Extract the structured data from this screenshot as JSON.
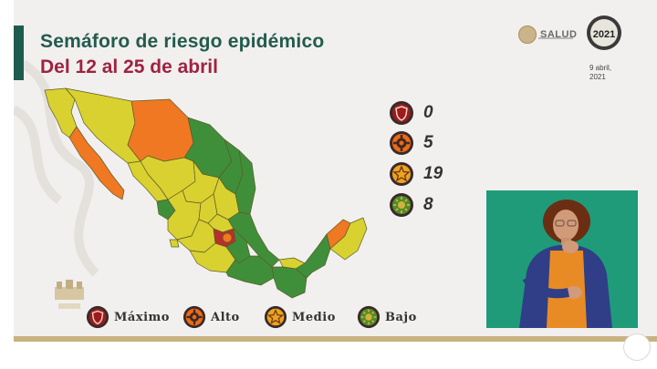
{
  "title": {
    "line1": "Semáforo de riesgo epidémico",
    "line2": "Del 12 al 25 de abril"
  },
  "header": {
    "agency": "SALUD",
    "year_badge": "2021",
    "date_line1": "9 abril,",
    "date_line2": "2021"
  },
  "counts": [
    {
      "level": "maximo",
      "value": "0",
      "color": "#9b1c1c",
      "icon": "shield-icon"
    },
    {
      "level": "alto",
      "value": "5",
      "color": "#ef6a13",
      "icon": "gear-icon"
    },
    {
      "level": "medio",
      "value": "19",
      "color": "#f2a11f",
      "icon": "star-icon"
    },
    {
      "level": "bajo",
      "value": "8",
      "color": "#4f8d2b",
      "icon": "sun-icon"
    }
  ],
  "legend": [
    {
      "label": "Máximo",
      "color": "#9b1c1c",
      "icon": "shield-icon"
    },
    {
      "label": "Alto",
      "color": "#ef6a13",
      "icon": "gear-icon"
    },
    {
      "label": "Medio",
      "color": "#f2a11f",
      "icon": "star-icon"
    },
    {
      "label": "Bajo",
      "color": "#4f8d2b",
      "icon": "sun-icon"
    }
  ],
  "map_colors": {
    "rojo": "#b7302c",
    "naranja": "#f07822",
    "amarillo": "#d9d130",
    "verde": "#3f8f3a"
  },
  "interpreter": {
    "background": "#1f9b79"
  }
}
